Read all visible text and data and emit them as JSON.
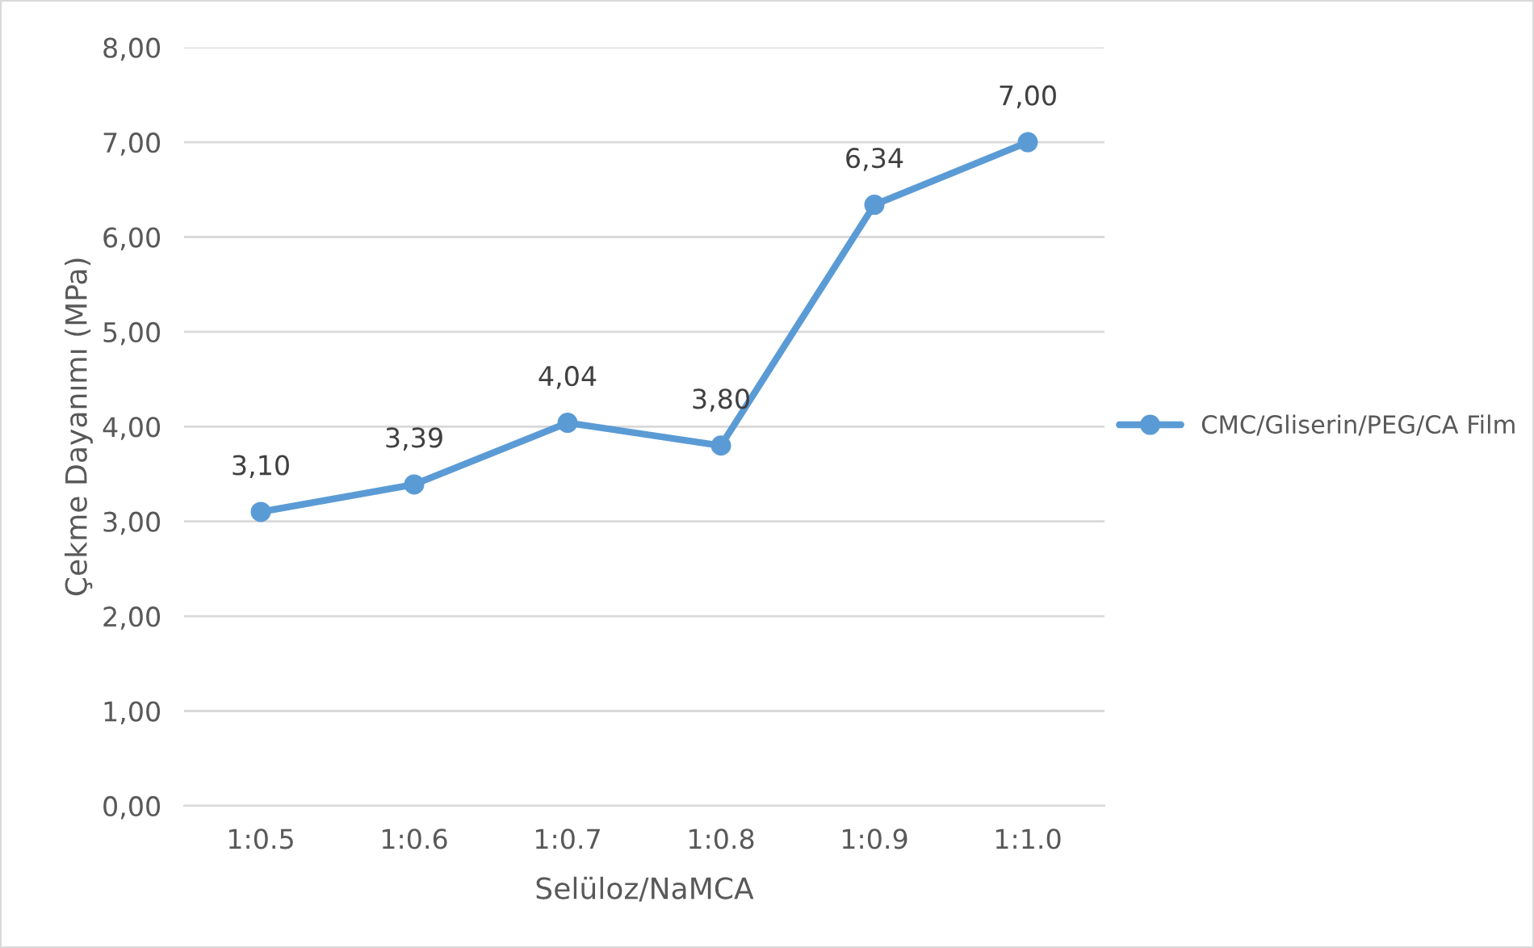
{
  "chart_data": {
    "type": "line",
    "xlabel": "Selüloz/NaMCA",
    "ylabel": "Çekme Dayanımı (MPa)",
    "categories": [
      "1:0.5",
      "1:0.6",
      "1:0.7",
      "1:0.8",
      "1:0.9",
      "1:1.0"
    ],
    "series": [
      {
        "name": "CMC/Gliserin/PEG/CA Film",
        "color": "#5b9bd5",
        "values": [
          3.1,
          3.39,
          4.04,
          3.8,
          6.34,
          7.0
        ],
        "value_labels": [
          "3,10",
          "3,39",
          "4,04",
          "3,80",
          "6,34",
          "7,00"
        ]
      }
    ],
    "ylim": [
      0,
      8
    ],
    "yticks": [
      {
        "value": 0,
        "label": "0,00"
      },
      {
        "value": 1,
        "label": "1,00"
      },
      {
        "value": 2,
        "label": "2,00"
      },
      {
        "value": 3,
        "label": "3,00"
      },
      {
        "value": 4,
        "label": "4,00"
      },
      {
        "value": 5,
        "label": "5,00"
      },
      {
        "value": 6,
        "label": "6,00"
      },
      {
        "value": 7,
        "label": "7,00"
      },
      {
        "value": 8,
        "label": "8,00"
      }
    ],
    "grid": "y",
    "legend": "right",
    "marker": "circle",
    "line_style": "solid"
  }
}
